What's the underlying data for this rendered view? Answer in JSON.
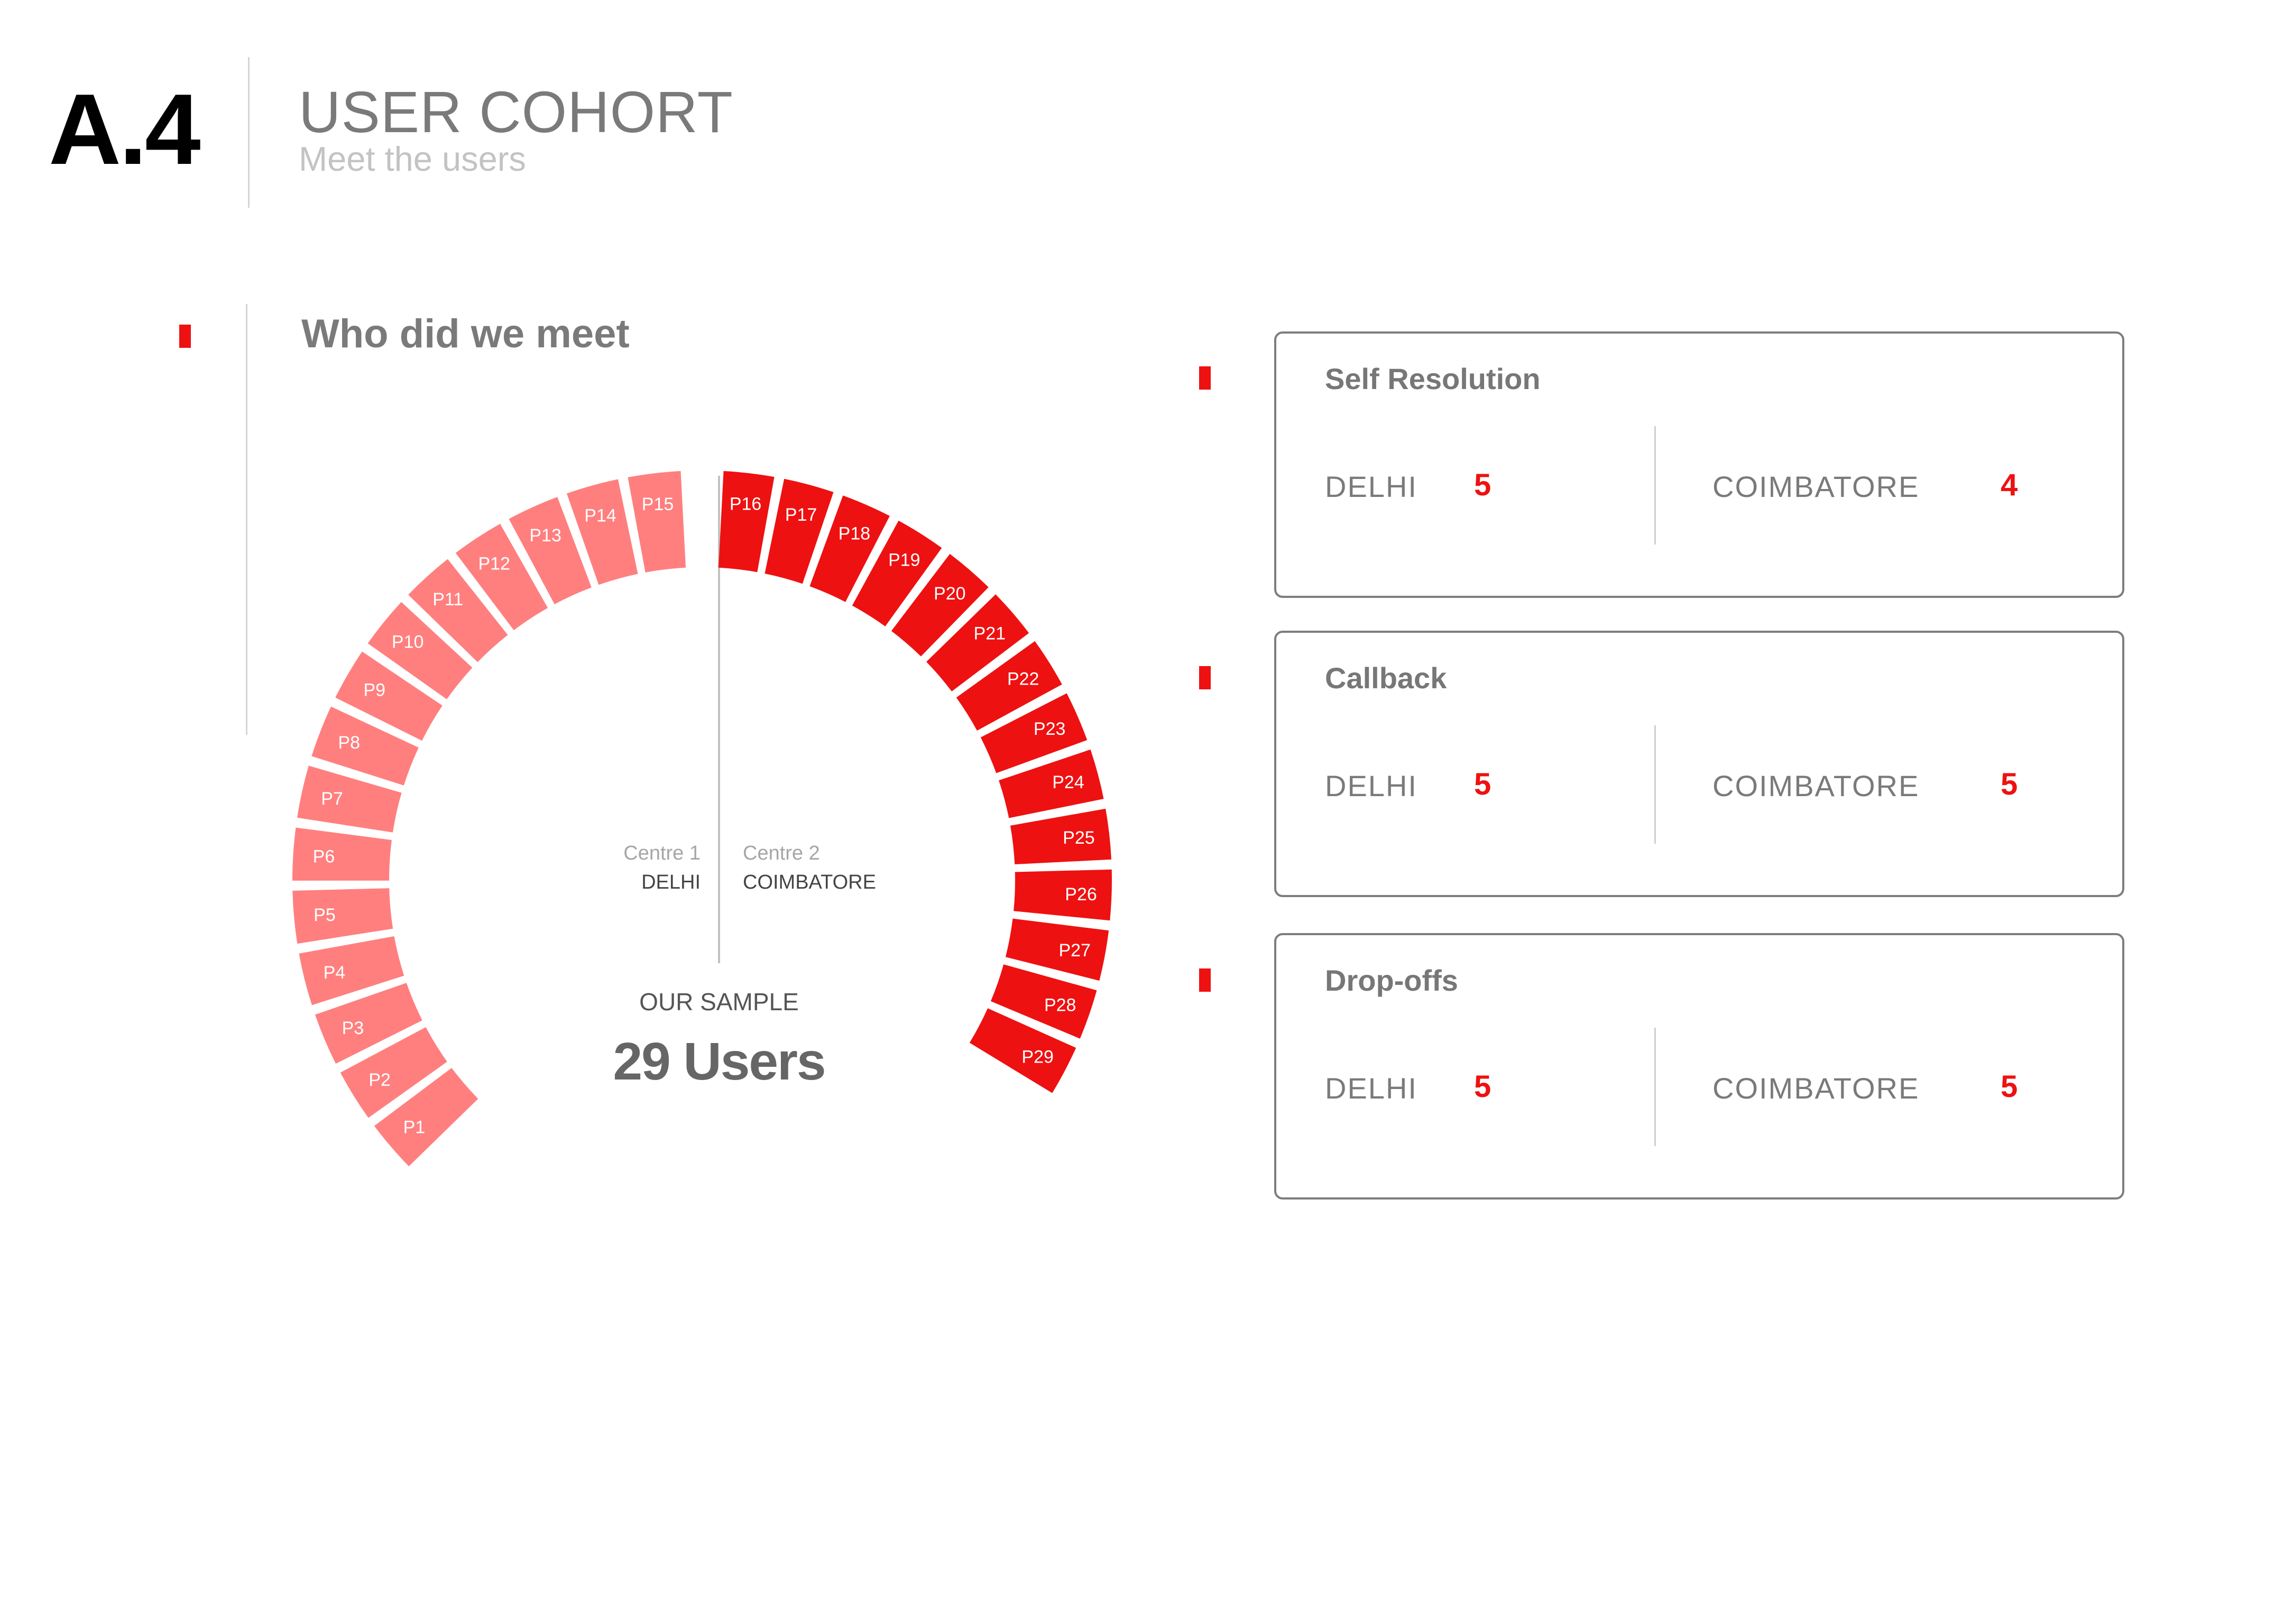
{
  "header": {
    "code": "A.4",
    "title": "USER COHORT",
    "subtitle": "Meet the users"
  },
  "section": {
    "heading": "Who did we meet"
  },
  "colors": {
    "accent": "#ee1111",
    "delhi": "#ff7f7f",
    "coimbatore": "#ee1111",
    "text_gray": "#7a7a7a"
  },
  "cohort": {
    "centre1": {
      "label": "Centre 1",
      "city": "DELHI"
    },
    "centre2": {
      "label": "Centre 2",
      "city": "COIMBATORE"
    },
    "sample_label": "OUR SAMPLE",
    "sample_total": "29 Users",
    "participants": {
      "delhi": [
        "P1",
        "P2",
        "P3",
        "P4",
        "P5",
        "P6",
        "P7",
        "P8",
        "P9",
        "P10",
        "P11",
        "P12",
        "P13",
        "P14",
        "P15"
      ],
      "coimbatore": [
        "P16",
        "P17",
        "P18",
        "P19",
        "P20",
        "P21",
        "P22",
        "P23",
        "P24",
        "P25",
        "P26",
        "P27",
        "P28",
        "P29"
      ]
    }
  },
  "cards": [
    {
      "title": "Self Resolution",
      "left_city": "DELHI",
      "left_value": "5",
      "right_city": "COIMBATORE",
      "right_value": "4"
    },
    {
      "title": "Callback",
      "left_city": "DELHI",
      "left_value": "5",
      "right_city": "COIMBATORE",
      "right_value": "5"
    },
    {
      "title": "Drop-offs",
      "left_city": "DELHI",
      "left_value": "5",
      "right_city": "COIMBATORE",
      "right_value": "5"
    }
  ]
}
